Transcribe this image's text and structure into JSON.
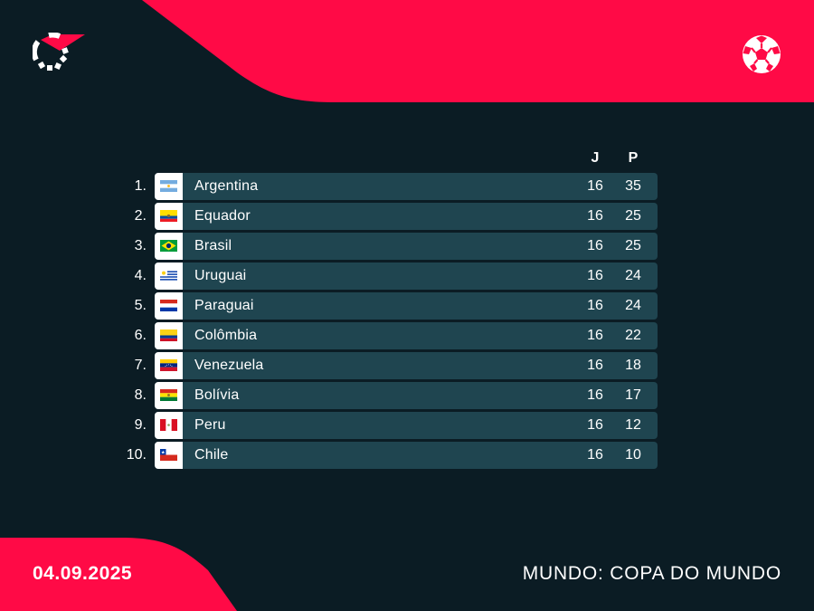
{
  "colors": {
    "background": "#0b1c24",
    "accent": "#ff0a46",
    "row_bg": "#1f4550",
    "text": "#ffffff"
  },
  "header": {
    "logo_icon": "flashscore-logo-icon",
    "sport_icon": "football-icon"
  },
  "columns": {
    "games": "J",
    "points": "P"
  },
  "standings": [
    {
      "rank": "1.",
      "team": "Argentina",
      "flag": "argentina",
      "games": "16",
      "points": "35"
    },
    {
      "rank": "2.",
      "team": "Equador",
      "flag": "ecuador",
      "games": "16",
      "points": "25"
    },
    {
      "rank": "3.",
      "team": "Brasil",
      "flag": "brazil",
      "games": "16",
      "points": "25"
    },
    {
      "rank": "4.",
      "team": "Uruguai",
      "flag": "uruguay",
      "games": "16",
      "points": "24"
    },
    {
      "rank": "5.",
      "team": "Paraguai",
      "flag": "paraguay",
      "games": "16",
      "points": "24"
    },
    {
      "rank": "6.",
      "team": "Colômbia",
      "flag": "colombia",
      "games": "16",
      "points": "22"
    },
    {
      "rank": "7.",
      "team": "Venezuela",
      "flag": "venezuela",
      "games": "16",
      "points": "18"
    },
    {
      "rank": "8.",
      "team": "Bolívia",
      "flag": "bolivia",
      "games": "16",
      "points": "17"
    },
    {
      "rank": "9.",
      "team": "Peru",
      "flag": "peru",
      "games": "16",
      "points": "12"
    },
    {
      "rank": "10.",
      "team": "Chile",
      "flag": "chile",
      "games": "16",
      "points": "10"
    }
  ],
  "footer": {
    "date": "04.09.2025",
    "competition": "MUNDO: COPA DO MUNDO"
  }
}
